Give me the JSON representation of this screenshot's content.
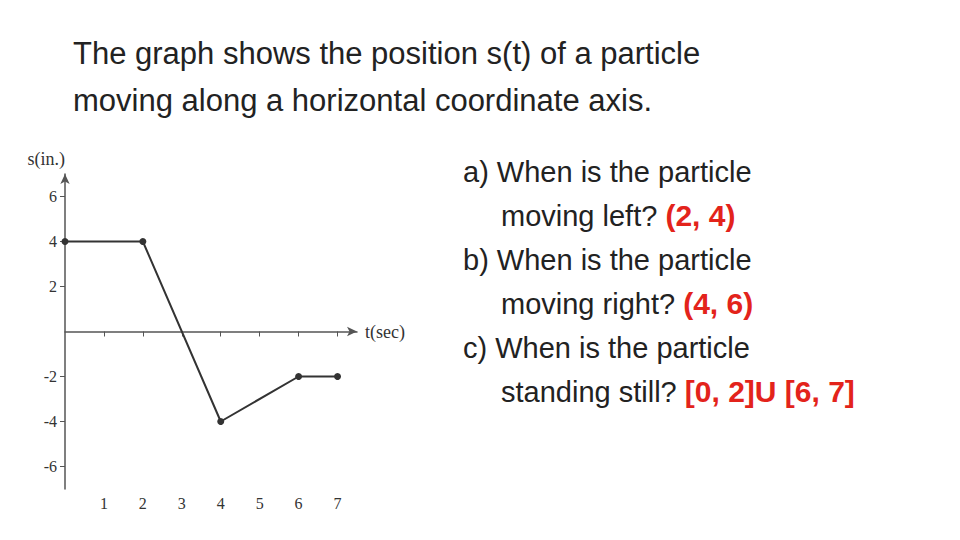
{
  "title": "The graph shows the position s(t) of a particle\nmoving along a horizontal coordinate axis.",
  "chart_data": {
    "type": "line",
    "x_label": "t(sec)",
    "y_label": "s(in.)",
    "x": [
      0,
      2,
      4,
      6,
      7
    ],
    "values": [
      4,
      4,
      -4,
      -2,
      -2
    ],
    "color": "#333333",
    "marker": "circle",
    "xlim": [
      0,
      7.5
    ],
    "xticks": [
      1,
      2,
      3,
      4,
      5,
      6,
      7
    ],
    "ylim": [
      -7,
      7
    ],
    "yticks": [
      -6,
      -4,
      -2,
      2,
      4,
      6
    ],
    "grid": false
  },
  "questions": [
    {
      "label": "a)",
      "question": "When is the particle\nmoving left?",
      "answer": "(2, 4)"
    },
    {
      "label": "b)",
      "question": "When is the particle\nmoving right?",
      "answer": "(4, 6)"
    },
    {
      "label": "c)",
      "question": "When is the particle\nstanding still?",
      "answer": "[0, 2]U [6, 7]"
    }
  ]
}
